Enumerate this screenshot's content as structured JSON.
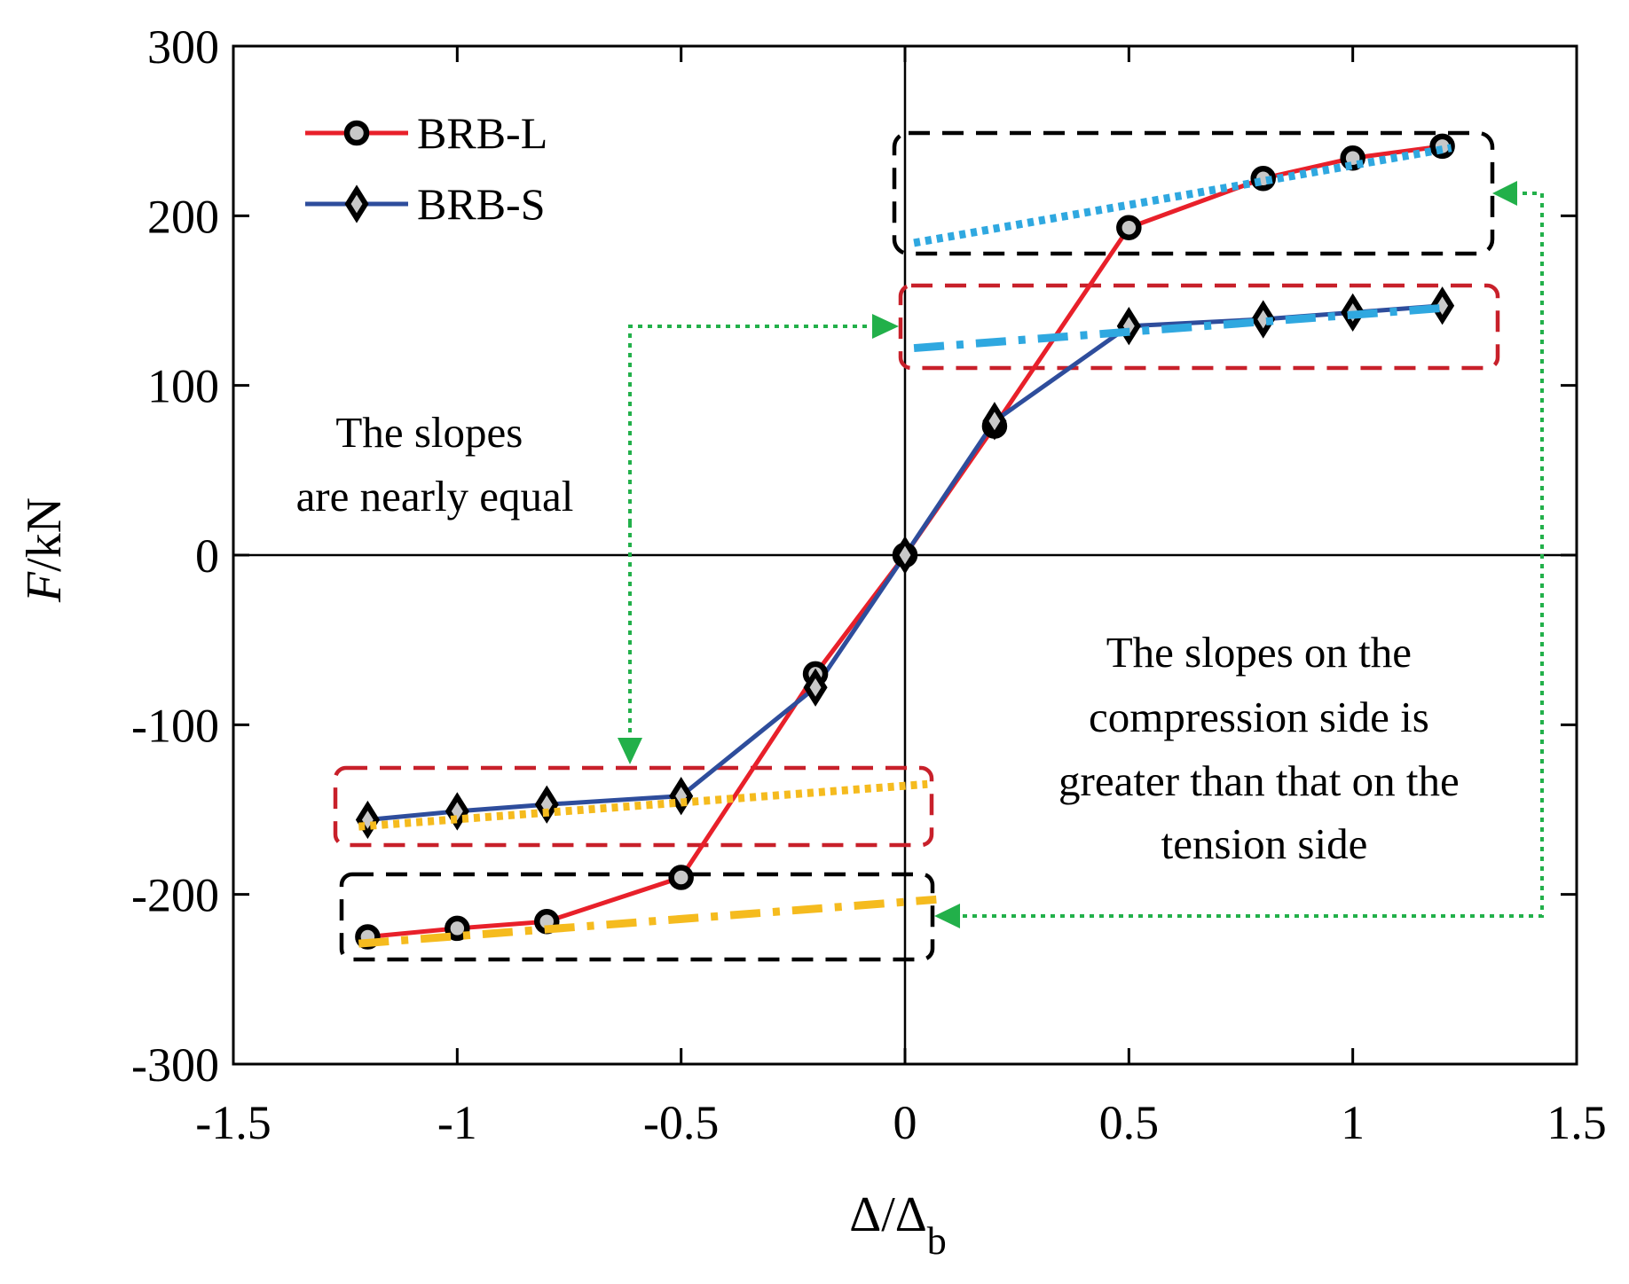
{
  "chart_data": {
    "type": "line",
    "xlabel": "Δ/Δ",
    "xlabel_subscript": "b",
    "ylabel": "F/kN",
    "ylabel_italic": "F",
    "ylabel_unit": "/kN",
    "xlim": [
      -1.5,
      1.5
    ],
    "ylim": [
      -300,
      300
    ],
    "xticks": [
      -1.5,
      -1,
      -0.5,
      0,
      0.5,
      1,
      1.5
    ],
    "xtick_labels": [
      "-1.5",
      "-1",
      "-0.5",
      "0",
      "0.5",
      "1",
      "1.5"
    ],
    "yticks": [
      -300,
      -200,
      -100,
      0,
      100,
      200,
      300
    ],
    "ytick_labels": [
      "-300",
      "-200",
      "-100",
      "0",
      "100",
      "200",
      "300"
    ],
    "legend_position": "top-left",
    "series": [
      {
        "name": "BRB-L",
        "color": "#e8202a",
        "marker": "circle",
        "x": [
          -1.2,
          -1.0,
          -0.8,
          -0.5,
          -0.2,
          0,
          0.2,
          0.5,
          0.8,
          1.0,
          1.2
        ],
        "y": [
          -225,
          -220,
          -216,
          -190,
          -70,
          0,
          76,
          193,
          222,
          234,
          241
        ]
      },
      {
        "name": "BRB-S",
        "color": "#2e4d9c",
        "marker": "diamond",
        "x": [
          -1.2,
          -1.0,
          -0.8,
          -0.5,
          -0.2,
          0,
          0.2,
          0.5,
          0.8,
          1.0,
          1.2
        ],
        "y": [
          -156,
          -151,
          -147,
          -142,
          -78,
          0,
          79,
          135,
          139,
          143,
          147
        ]
      }
    ],
    "fit_lines": [
      {
        "name": "BRB-L tension slope",
        "color": "#2fa8e0",
        "style": "dotted",
        "x": [
          0.02,
          1.22
        ],
        "y": [
          184,
          240
        ]
      },
      {
        "name": "BRB-S tension slope",
        "color": "#2fa8e0",
        "style": "dash-dot",
        "x": [
          0.02,
          1.22
        ],
        "y": [
          122,
          146
        ]
      },
      {
        "name": "BRB-S compression slope",
        "color": "#f5bb1e",
        "style": "dotted",
        "x": [
          -1.22,
          0.05
        ],
        "y": [
          -160,
          -135
        ]
      },
      {
        "name": "BRB-L compression slope",
        "color": "#f5bb1e",
        "style": "dash-dot",
        "x": [
          -1.22,
          0.07
        ],
        "y": [
          -229,
          -203
        ]
      }
    ],
    "annotations": {
      "left_text": [
        "The slopes",
        "are nearly equal"
      ],
      "right_text": [
        "The slopes on the",
        "compression side is",
        "greater than that on the",
        "tension side"
      ]
    },
    "colors": {
      "highlight_box_l": "#000000",
      "highlight_box_s": "#c8202a",
      "arrow": "#22b04a"
    }
  }
}
